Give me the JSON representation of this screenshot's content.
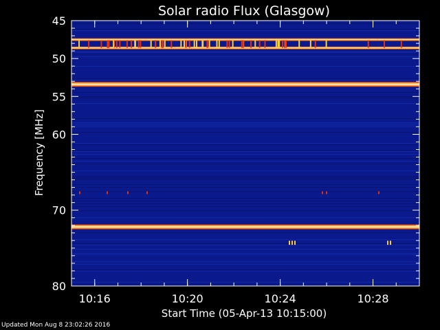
{
  "chart_data": {
    "type": "heatmap",
    "title": "Solar radio Flux (Glasgow)",
    "xlabel": "Start Time (05-Apr-13 10:15:00)",
    "ylabel": "Frequency [MHz]",
    "xlim": [
      "10:15",
      "10:30"
    ],
    "ylim": [
      45,
      80
    ],
    "y_inverted": true,
    "x_ticks": [
      "10:16",
      "10:20",
      "10:24",
      "10:28"
    ],
    "y_ticks": [
      45,
      50,
      55,
      60,
      70,
      80
    ],
    "colormap": "blue-red-yellow-white",
    "bright_bands": [
      {
        "frequency": 47.5,
        "intensity": "high"
      },
      {
        "frequency": 48.6,
        "intensity": "high"
      },
      {
        "frequency": 53.4,
        "intensity": "saturated"
      },
      {
        "frequency": 72.2,
        "intensity": "saturated"
      }
    ]
  },
  "footer": {
    "updated": "Updated Mon Aug  8 23:02:26 2016"
  },
  "colors": {
    "background": "#000000",
    "field": "#0a1a8c",
    "band_hot": "#ffffff",
    "band_red": "#e03010",
    "spike": "#ffcc33"
  }
}
